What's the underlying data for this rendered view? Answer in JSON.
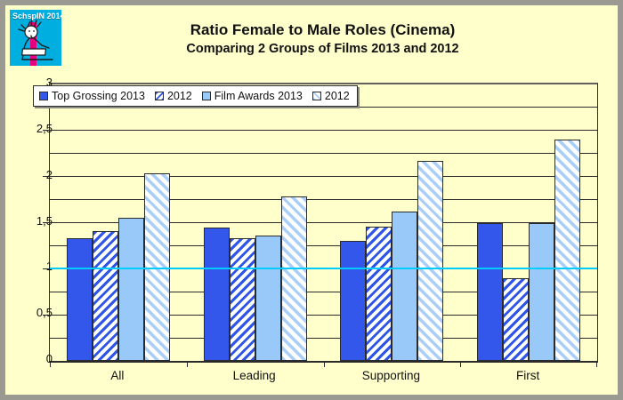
{
  "logo": {
    "text": "SchspIN 2014",
    "bg_color": "#00AEE0",
    "stripe_color": "#E5007E"
  },
  "title": "Ratio Female to Male Roles (Cinema)",
  "subtitle": "Comparing 2 Groups of Films 2013 and 2012",
  "colors": {
    "background": "#FFFFCC",
    "frame": "#9a9a92",
    "gridline": "#2b2b2b",
    "reference_line": "#00CCFF",
    "series1": "#3457EB",
    "series2_hatch": "#2F55E8",
    "series3": "#99C9F9",
    "series4_hatch": "#A9CFF9"
  },
  "chart_data": {
    "type": "bar",
    "title": "Ratio Female to Male Roles (Cinema)",
    "subtitle": "Comparing 2 Groups of Films 2013 and 2012",
    "categories": [
      "All",
      "Leading",
      "Supporting",
      "First"
    ],
    "series": [
      {
        "name": "Top Grossing 2013",
        "pattern": "solid",
        "color": "#3457EB",
        "values": [
          1.33,
          1.45,
          1.3,
          1.5
        ]
      },
      {
        "name": "2012",
        "pattern": "hatch-fwd",
        "color": "#2F55E8",
        "values": [
          1.41,
          1.33,
          1.46,
          0.9
        ]
      },
      {
        "name": "Film Awards 2013",
        "pattern": "solid",
        "color": "#99C9F9",
        "values": [
          1.55,
          1.36,
          1.62,
          1.5
        ]
      },
      {
        "name": "2012",
        "pattern": "hatch-back",
        "color": "#A9CFF9",
        "values": [
          2.04,
          1.78,
          2.17,
          2.4
        ]
      }
    ],
    "xlabel": "",
    "ylabel": "",
    "ylim": [
      0,
      3
    ],
    "ytick_values": [
      0,
      0.5,
      1,
      1.5,
      2,
      2.5,
      3
    ],
    "ytick_labels": [
      "0",
      "0,5",
      "1",
      "1,5",
      "2",
      "2,5",
      "3"
    ],
    "grid_step": 0.25,
    "grid_on": true,
    "reference_line": {
      "value": 1,
      "color": "#00CCFF"
    },
    "legend_position": "top-left"
  }
}
